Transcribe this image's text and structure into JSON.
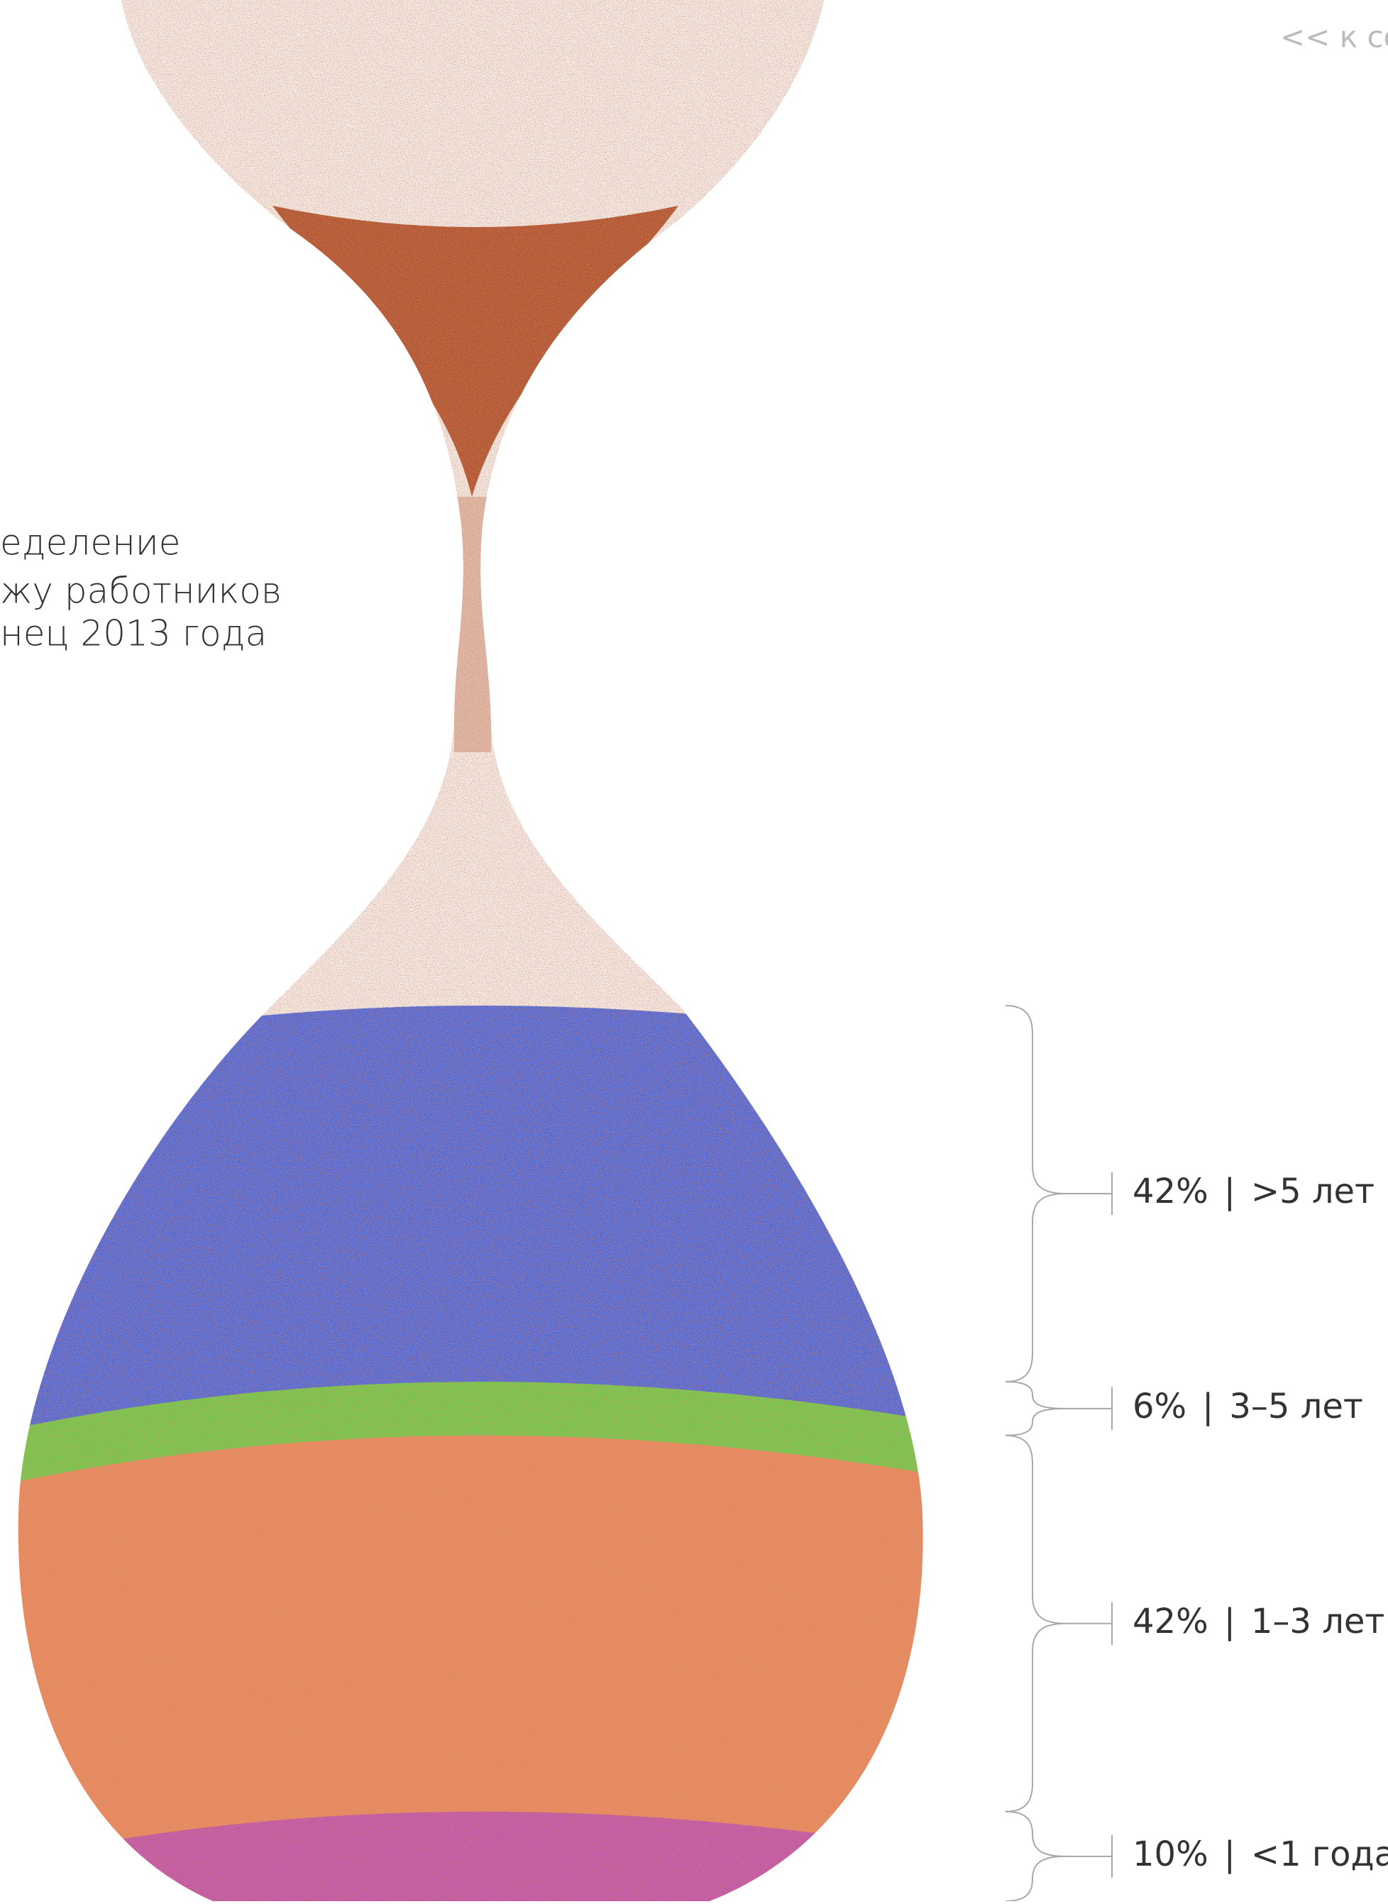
{
  "nav": {
    "back_link": "<< к со"
  },
  "chart_data": {
    "type": "hourglass",
    "title_lines": [
      "еделение",
      "жу работников",
      "нец 2013 года"
    ],
    "categories": [
      ">5 лет",
      "3–5 лет",
      "1–3 лет",
      "<1 года"
    ],
    "values": [
      42,
      6,
      42,
      10
    ],
    "value_labels": [
      "42%",
      "6%",
      "42%",
      "10%"
    ],
    "separator": "|",
    "colors": [
      "#4d6ad6",
      "#74c94e",
      "#ec8c60",
      "#c556aa"
    ]
  }
}
